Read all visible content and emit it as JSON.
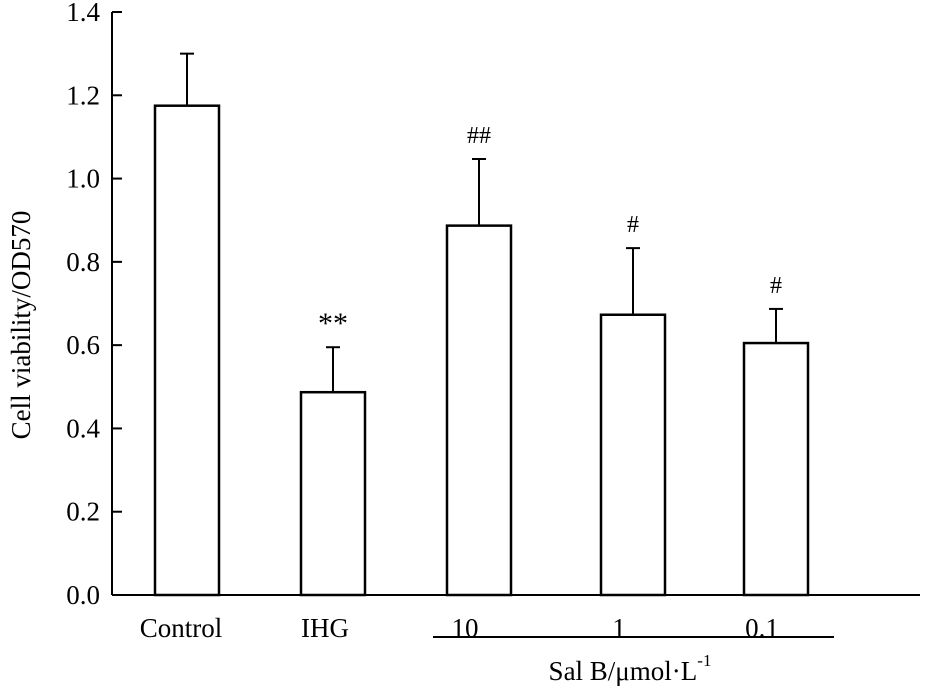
{
  "chart_data": {
    "type": "bar",
    "categories": [
      "Control",
      "IHG",
      "10",
      "1",
      "0.1"
    ],
    "values": [
      1.175,
      0.487,
      0.887,
      0.673,
      0.605
    ],
    "error": [
      0.125,
      0.108,
      0.16,
      0.16,
      0.082
    ],
    "annotations": [
      "",
      "**",
      "##",
      "#",
      "#"
    ],
    "ylabel": "Cell viability/OD570",
    "ylim": [
      0,
      1.4
    ],
    "yticks": [
      "0.0",
      "0.2",
      "0.4",
      "0.6",
      "0.8",
      "1.0",
      "1.2",
      "1.4"
    ],
    "group_label": {
      "text": "Sal B/μmol·L",
      "superscript": "-1",
      "categories": [
        "10",
        "1",
        "0.1"
      ]
    },
    "grid": false,
    "colors": {
      "bar_fill": "#ffffff",
      "stroke": "#000000"
    }
  }
}
